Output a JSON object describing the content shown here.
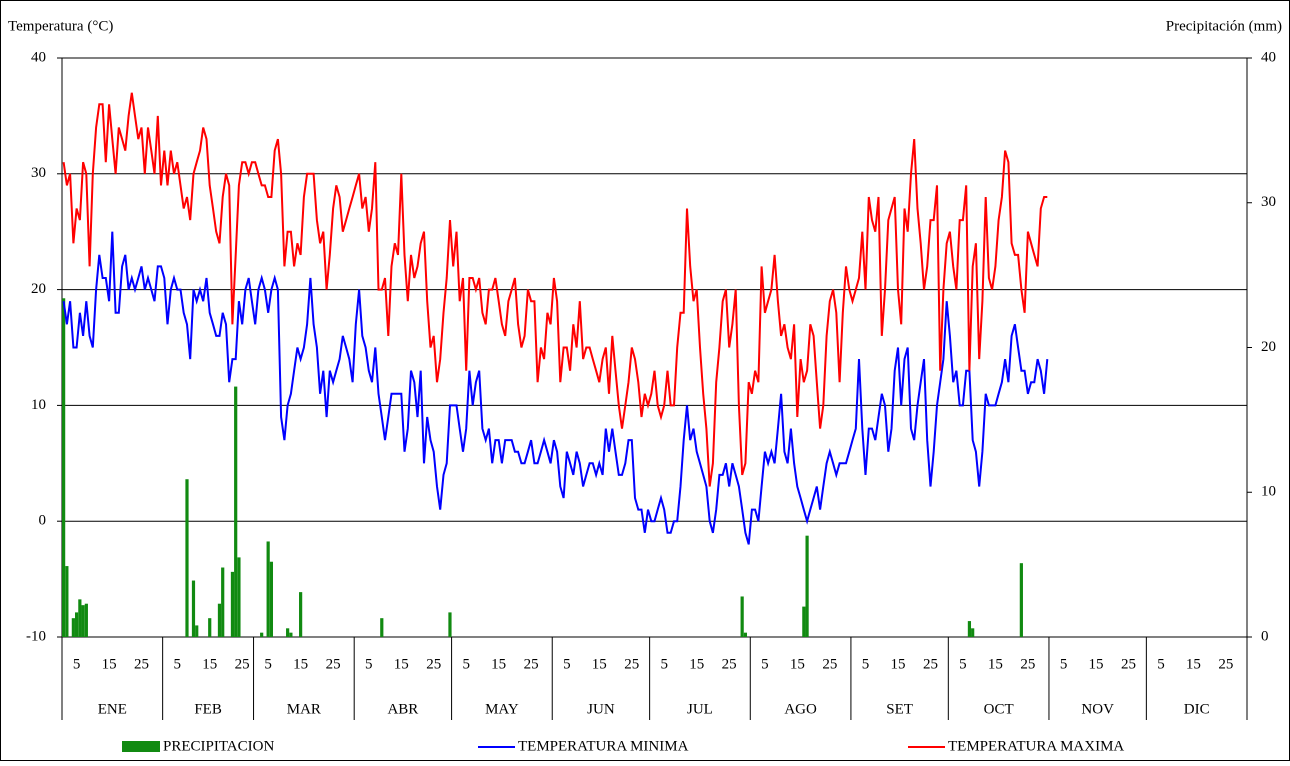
{
  "chart_data": {
    "type": "line",
    "y_title": "Temperatura  (°C)",
    "y2_title": "Precipitación (mm)",
    "ylim": [
      -10,
      40
    ],
    "yticks": [
      -10,
      0,
      10,
      20,
      30,
      40
    ],
    "y2lim": [
      0,
      40
    ],
    "y2ticks": [
      0,
      10,
      20,
      30,
      40
    ],
    "xlim": [
      0.5,
      365.5
    ],
    "grid": true,
    "xticks": [
      {
        "value": 5,
        "label": "5"
      },
      {
        "value": 15,
        "label": "15"
      },
      {
        "value": 25,
        "label": "25"
      },
      {
        "value": 36,
        "label": "5"
      },
      {
        "value": 46,
        "label": "15"
      },
      {
        "value": 56,
        "label": "25"
      },
      {
        "value": 64,
        "label": "5"
      },
      {
        "value": 74,
        "label": "15"
      },
      {
        "value": 84,
        "label": "25"
      },
      {
        "value": 95,
        "label": "5"
      },
      {
        "value": 105,
        "label": "15"
      },
      {
        "value": 115,
        "label": "25"
      },
      {
        "value": 125,
        "label": "5"
      },
      {
        "value": 135,
        "label": "15"
      },
      {
        "value": 145,
        "label": "25"
      },
      {
        "value": 156,
        "label": "5"
      },
      {
        "value": 166,
        "label": "15"
      },
      {
        "value": 176,
        "label": "25"
      },
      {
        "value": 186,
        "label": "5"
      },
      {
        "value": 196,
        "label": "15"
      },
      {
        "value": 206,
        "label": "25"
      },
      {
        "value": 217,
        "label": "5"
      },
      {
        "value": 227,
        "label": "15"
      },
      {
        "value": 237,
        "label": "25"
      },
      {
        "value": 248,
        "label": "5"
      },
      {
        "value": 258,
        "label": "15"
      },
      {
        "value": 268,
        "label": "25"
      },
      {
        "value": 278,
        "label": "5"
      },
      {
        "value": 288,
        "label": "15"
      },
      {
        "value": 298,
        "label": "25"
      },
      {
        "value": 309,
        "label": "5"
      },
      {
        "value": 319,
        "label": "15"
      },
      {
        "value": 329,
        "label": "25"
      },
      {
        "value": 339,
        "label": "5"
      },
      {
        "value": 349,
        "label": "15"
      },
      {
        "value": 359,
        "label": "25"
      }
    ],
    "months": [
      {
        "value": 1,
        "label": "ENE"
      },
      {
        "value": 32,
        "label": "FEB"
      },
      {
        "value": 60,
        "label": "MAR"
      },
      {
        "value": 91,
        "label": "ABR"
      },
      {
        "value": 121,
        "label": "MAY"
      },
      {
        "value": 152,
        "label": "JUN"
      },
      {
        "value": 182,
        "label": "JUL"
      },
      {
        "value": 213,
        "label": "AGO"
      },
      {
        "value": 244,
        "label": "SET"
      },
      {
        "value": 274,
        "label": "OCT"
      },
      {
        "value": 305,
        "label": "NOV"
      },
      {
        "value": 335,
        "label": "DIC"
      }
    ],
    "x": [
      1,
      2,
      3,
      4,
      5,
      6,
      7,
      8,
      9,
      10,
      11,
      12,
      13,
      14,
      15,
      16,
      17,
      18,
      19,
      20,
      21,
      22,
      23,
      24,
      25,
      26,
      27,
      28,
      29,
      30,
      31,
      32,
      33,
      34,
      35,
      36,
      37,
      38,
      39,
      40,
      41,
      42,
      43,
      44,
      45,
      46,
      47,
      48,
      49,
      50,
      51,
      52,
      53,
      54,
      55,
      56,
      57,
      58,
      59,
      60,
      61,
      62,
      63,
      64,
      65,
      66,
      67,
      68,
      69,
      70,
      71,
      72,
      73,
      74,
      75,
      76,
      77,
      78,
      79,
      80,
      81,
      82,
      83,
      84,
      85,
      86,
      87,
      88,
      89,
      90,
      91,
      92,
      93,
      94,
      95,
      96,
      97,
      98,
      99,
      100,
      101,
      102,
      103,
      104,
      105,
      106,
      107,
      108,
      109,
      110,
      111,
      112,
      113,
      114,
      115,
      116,
      117,
      118,
      119,
      120,
      121,
      122,
      123,
      124,
      125,
      126,
      127,
      128,
      129,
      130,
      131,
      132,
      133,
      134,
      135,
      136,
      137,
      138,
      139,
      140,
      141,
      142,
      143,
      144,
      145,
      146,
      147,
      148,
      149,
      150,
      151,
      152,
      153,
      154,
      155,
      156,
      157,
      158,
      159,
      160,
      161,
      162,
      163,
      164,
      165,
      166,
      167,
      168,
      169,
      170,
      171,
      172,
      173,
      174,
      175,
      176,
      177,
      178,
      179,
      180,
      181,
      182,
      183,
      184,
      185,
      186,
      187,
      188,
      189,
      190,
      191,
      192,
      193,
      194,
      195,
      196,
      197,
      198,
      199,
      200,
      201,
      202,
      203,
      204,
      205,
      206,
      207,
      208,
      209,
      210,
      211,
      212,
      213,
      214,
      215,
      216,
      217,
      218,
      219,
      220,
      221,
      222,
      223,
      224,
      225,
      226,
      227,
      228,
      229,
      230,
      231,
      232,
      233,
      234,
      235,
      236,
      237,
      238,
      239,
      240,
      241,
      242,
      243,
      244,
      245,
      246,
      247,
      248,
      249,
      250,
      251,
      252,
      253,
      254,
      255,
      256,
      257,
      258,
      259,
      260,
      261,
      262,
      263,
      264,
      265,
      266,
      267,
      268,
      269,
      270,
      271,
      272,
      273,
      274,
      275,
      276,
      277,
      278,
      279,
      280,
      281,
      282,
      283,
      284,
      285,
      286,
      287,
      288,
      289,
      290,
      291,
      292,
      293,
      294,
      295,
      296,
      297,
      298,
      299,
      300,
      301,
      302,
      303,
      304
    ],
    "bars": {
      "name": "PRECIPITACION",
      "color": "#118a11",
      "axis": "y2",
      "x": [
        1,
        2,
        4,
        5,
        6,
        7,
        8,
        39,
        41,
        42,
        46,
        49,
        50,
        53,
        54,
        55,
        62,
        64,
        65,
        70,
        71,
        74,
        99,
        120,
        210,
        211,
        229,
        230,
        280,
        281,
        296
      ],
      "values": [
        23.4,
        4.9,
        1.3,
        1.7,
        2.6,
        2.2,
        2.3,
        10.9,
        3.9,
        0.8,
        1.3,
        2.3,
        4.8,
        4.5,
        17.3,
        5.5,
        0.3,
        6.6,
        5.2,
        0.6,
        0.3,
        3.1,
        1.3,
        1.7,
        2.8,
        0.3,
        2.1,
        7.0,
        1.1,
        0.6,
        5.1
      ]
    },
    "series": [
      {
        "name": "TEMPERATURA MINIMA",
        "color": "#0000ff",
        "values": [
          19,
          17,
          19,
          15,
          15,
          18,
          16,
          19,
          16,
          15,
          20,
          23,
          21,
          21,
          19,
          25,
          18,
          18,
          22,
          23,
          20,
          21,
          20,
          21,
          22,
          20,
          21,
          20,
          19,
          22,
          22,
          21,
          17,
          20,
          21,
          20,
          20,
          18,
          17,
          14,
          20,
          19,
          20,
          19,
          21,
          18,
          17,
          16,
          16,
          18,
          17,
          12,
          14,
          14,
          19,
          17,
          20,
          21,
          19,
          17,
          20,
          21,
          20,
          18,
          20,
          21,
          20,
          9,
          7,
          10,
          11,
          13,
          15,
          14,
          15,
          17,
          21,
          17,
          15,
          11,
          13,
          9,
          13,
          12,
          13,
          14,
          16,
          15,
          14,
          12,
          17,
          20,
          16,
          15,
          13,
          12,
          15,
          11,
          9,
          7,
          9,
          11,
          11,
          11,
          11,
          6,
          8,
          13,
          12,
          9,
          13,
          5,
          9,
          7,
          6,
          3,
          1,
          4,
          5,
          10,
          10,
          10,
          8,
          6,
          8,
          13,
          10,
          12,
          13,
          8,
          7,
          8,
          5,
          7,
          7,
          5,
          7,
          7,
          7,
          6,
          6,
          5,
          5,
          6,
          7,
          5,
          5,
          6,
          7,
          6,
          5,
          7,
          6,
          3,
          2,
          6,
          5,
          4,
          6,
          5,
          3,
          4,
          5,
          5,
          4,
          5,
          4,
          8,
          6,
          8,
          6,
          4,
          4,
          5,
          7,
          7,
          2,
          1,
          1,
          -1,
          1,
          0,
          0,
          1,
          2,
          1,
          -1,
          -1,
          0,
          0,
          3,
          7,
          10,
          7,
          8,
          6,
          5,
          4,
          3,
          0,
          -1,
          1,
          4,
          4,
          5,
          3,
          5,
          4,
          3,
          1,
          -1,
          -2,
          1,
          1,
          0,
          3,
          6,
          5,
          6,
          5,
          8,
          11,
          6,
          5,
          8,
          5,
          3,
          2,
          1,
          0,
          1,
          2,
          3,
          1,
          3,
          5,
          6,
          5,
          4,
          5,
          5,
          5,
          6,
          7,
          8,
          14,
          8,
          4,
          8,
          8,
          7,
          9,
          11,
          10,
          6,
          8,
          13,
          15,
          10,
          14,
          15,
          8,
          7,
          10,
          12,
          14,
          7,
          3,
          6,
          10,
          12,
          14,
          19,
          16,
          12,
          13,
          10,
          10,
          13,
          13,
          7,
          6,
          3,
          6,
          11,
          10,
          10,
          10,
          11,
          12,
          14,
          12,
          16,
          17,
          15,
          13,
          13,
          11,
          12,
          12,
          14,
          13,
          11,
          14
        ]
      },
      {
        "name": "TEMPERATURA MAXIMA",
        "color": "#ff0000",
        "values": [
          31,
          29,
          30,
          24,
          27,
          26,
          31,
          30,
          22,
          30,
          34,
          36,
          36,
          31,
          36,
          33,
          30,
          34,
          33,
          32,
          35,
          37,
          35,
          33,
          34,
          30,
          34,
          32,
          30,
          35,
          29,
          32,
          29,
          32,
          30,
          31,
          29,
          27,
          28,
          26,
          30,
          31,
          32,
          34,
          33,
          29,
          27,
          25,
          24,
          28,
          30,
          29,
          17,
          23,
          29,
          31,
          31,
          30,
          31,
          31,
          30,
          29,
          29,
          28,
          28,
          32,
          33,
          30,
          22,
          25,
          25,
          22,
          24,
          23,
          28,
          30,
          30,
          30,
          26,
          24,
          25,
          20,
          23,
          27,
          29,
          28,
          25,
          26,
          27,
          28,
          29,
          30,
          27,
          28,
          25,
          27,
          31,
          20,
          20,
          21,
          16,
          22,
          24,
          23,
          30,
          23,
          19,
          23,
          21,
          22,
          24,
          25,
          19,
          15,
          16,
          12,
          14,
          18,
          21,
          26,
          22,
          25,
          19,
          21,
          13,
          21,
          21,
          20,
          21,
          18,
          17,
          20,
          20,
          21,
          19,
          17,
          16,
          19,
          20,
          21,
          17,
          15,
          16,
          20,
          19,
          19,
          12,
          15,
          14,
          18,
          17,
          21,
          19,
          12,
          15,
          15,
          13,
          17,
          15,
          19,
          14,
          15,
          15,
          14,
          13,
          12,
          14,
          15,
          11,
          16,
          13,
          10,
          8,
          10,
          12,
          15,
          14,
          12,
          9,
          11,
          10,
          11,
          13,
          10,
          9,
          10,
          13,
          10,
          10,
          15,
          18,
          18,
          27,
          22,
          19,
          20,
          15,
          11,
          8,
          3,
          5,
          12,
          15,
          19,
          20,
          15,
          17,
          20,
          10,
          4,
          5,
          12,
          11,
          13,
          12,
          22,
          18,
          19,
          20,
          23,
          19,
          16,
          17,
          15,
          14,
          17,
          9,
          14,
          12,
          13,
          17,
          16,
          12,
          8,
          10,
          16,
          19,
          20,
          18,
          12,
          18,
          22,
          20,
          19,
          20,
          21,
          25,
          20,
          28,
          26,
          25,
          28,
          16,
          20,
          26,
          27,
          28,
          20,
          17,
          27,
          25,
          30,
          33,
          27,
          24,
          20,
          22,
          26,
          26,
          29,
          13,
          20,
          24,
          25,
          22,
          20,
          26,
          26,
          29,
          13,
          22,
          24,
          14,
          19,
          28,
          21,
          20,
          22,
          26,
          28,
          32,
          31,
          24,
          23,
          23,
          20,
          18,
          25,
          24,
          23,
          22,
          27,
          28,
          28
        ]
      }
    ]
  }
}
